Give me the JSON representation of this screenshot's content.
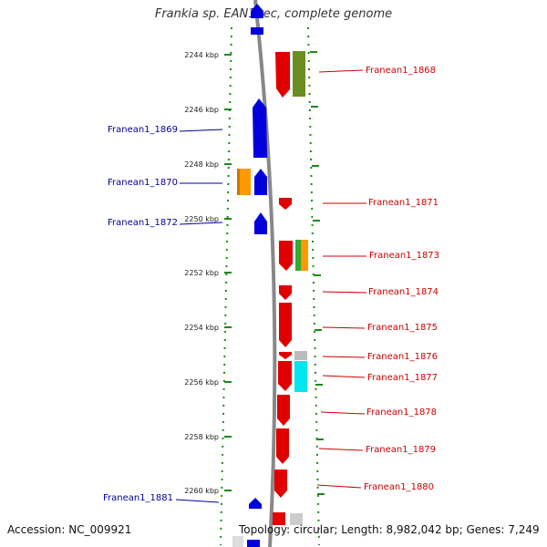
{
  "title": "Frankia sp. EAN1pec, complete genome",
  "footer": {
    "accession": "Accession: NC_009921",
    "summary": "Topology: circular; Length: 8,982,042 bp; Genes: 7,249"
  },
  "colors": {
    "forward_gene": "#e00000",
    "reverse_gene": "#0000dd",
    "forward_label": "#cc0000",
    "reverse_label": "#000099",
    "tick": "#1a8a1a",
    "backbone": "#888888",
    "cog_orange": "#ff9900",
    "cog_olive": "#6b8e23",
    "cog_green": "#33aa33",
    "cog_cyan": "#00e5ee",
    "cog_gray": "#bbbbbb"
  },
  "scale": {
    "unit": "kbp",
    "ticks": [
      "2244 kbp",
      "2246 kbp",
      "2248 kbp",
      "2250 kbp",
      "2252 kbp",
      "2254 kbp",
      "2256 kbp",
      "2258 kbp",
      "2260 kbp"
    ]
  },
  "genes": {
    "forward": [
      {
        "label": "Franean1_1868",
        "cog": "olive"
      },
      {
        "label": "Franean1_1871",
        "cog": ""
      },
      {
        "label": "Franean1_1873",
        "cog": "green-orange"
      },
      {
        "label": "Franean1_1874",
        "cog": ""
      },
      {
        "label": "Franean1_1875",
        "cog": ""
      },
      {
        "label": "Franean1_1876",
        "cog": "gray"
      },
      {
        "label": "Franean1_1877",
        "cog": "cyan"
      },
      {
        "label": "Franean1_1878",
        "cog": ""
      },
      {
        "label": "Franean1_1879",
        "cog": ""
      },
      {
        "label": "Franean1_1880",
        "cog": ""
      }
    ],
    "reverse": [
      {
        "label": "Franean1_1869",
        "cog": ""
      },
      {
        "label": "Franean1_1870",
        "cog": "orange"
      },
      {
        "label": "Franean1_1872",
        "cog": ""
      },
      {
        "label": "Franean1_1881",
        "cog": ""
      }
    ]
  }
}
